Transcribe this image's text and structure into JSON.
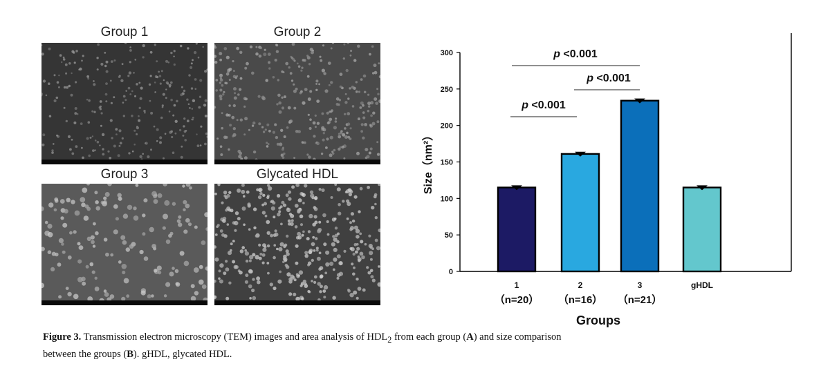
{
  "tem_panels": [
    {
      "title": "Group 1"
    },
    {
      "title": "Group 2"
    },
    {
      "title": "Group 3"
    },
    {
      "title": "Glycated HDL"
    }
  ],
  "chart_data": {
    "type": "bar",
    "categories": [
      "1",
      "2",
      "3",
      "gHDL"
    ],
    "category_sublabels": [
      "（n=20）",
      "（n=16）",
      "（n=21）",
      ""
    ],
    "values": [
      115,
      161,
      234,
      115
    ],
    "errors": [
      2,
      2,
      2,
      2
    ],
    "colors": [
      "#1c1a64",
      "#29a8e0",
      "#0b6fba",
      "#63c7cd"
    ],
    "xlabel": "Groups",
    "ylabel": "Size（nm²）",
    "ylim": [
      0,
      300
    ],
    "yticks": [
      0,
      50,
      100,
      150,
      200,
      250,
      300
    ],
    "significance": [
      {
        "from": 0,
        "to": 2,
        "p_prefix": "p",
        "p_text": "<0.001"
      },
      {
        "from": 1,
        "to": 2,
        "p_prefix": "p",
        "p_text": "<0.001"
      },
      {
        "from": 0,
        "to": 1,
        "p_prefix": "p",
        "p_text": "<0.001"
      }
    ]
  },
  "caption": {
    "label": "Figure 3.",
    "text_part1": " Transmission electron microscopy (TEM) images and area analysis of HDL",
    "subscript": "2",
    "text_part2": " from each group (",
    "A": "A",
    "text_part3": ") and size comparison between the groups (",
    "B": "B",
    "text_part4": "). gHDL, glycated HDL."
  }
}
